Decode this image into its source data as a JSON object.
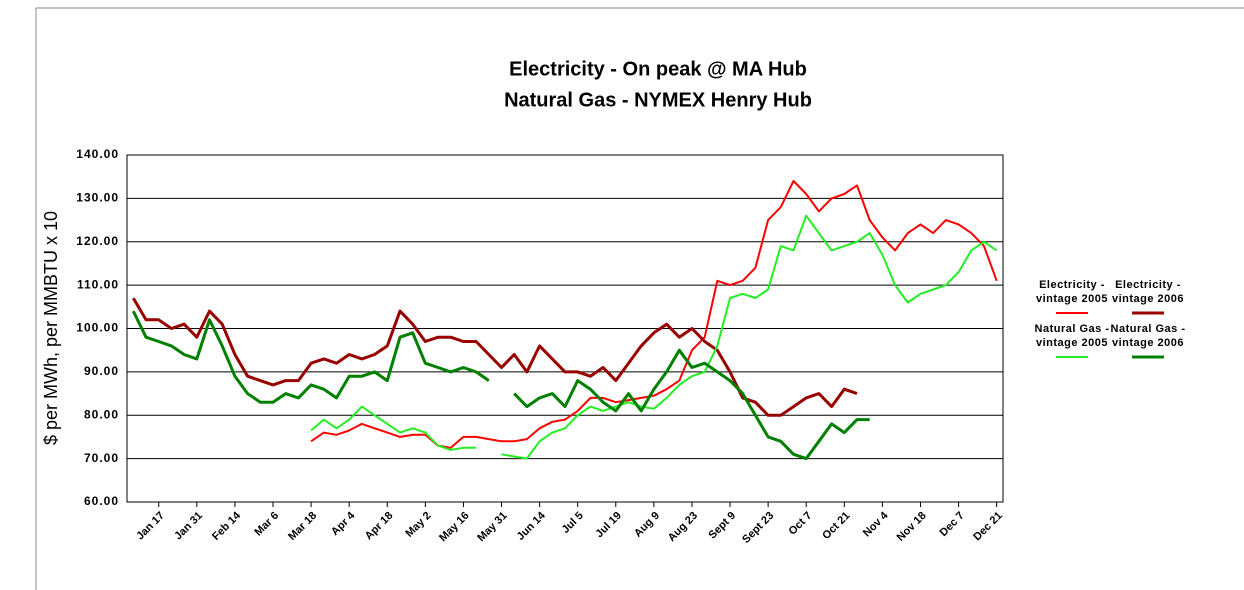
{
  "chart_data": {
    "type": "line",
    "title": "Electricity - On peak @ MA Hub",
    "subtitle": "Natural Gas - NYMEX Henry Hub",
    "y_label": "$ per MWh, per MMBTU x 10",
    "categories": [
      null,
      null,
      "Jan 17",
      null,
      null,
      "Jan 31",
      null,
      null,
      "Feb 14",
      null,
      null,
      "Mar 6",
      null,
      null,
      "Mar 18",
      null,
      null,
      "Apr 4",
      null,
      null,
      "Apr 18",
      null,
      null,
      "May 2",
      null,
      null,
      "May 16",
      null,
      null,
      "May 31",
      null,
      null,
      "Jun 14",
      null,
      null,
      "Jul 5",
      null,
      null,
      "Jul 19",
      null,
      null,
      "Aug 9",
      null,
      null,
      "Aug 23",
      null,
      null,
      "Sept 9",
      null,
      null,
      "Sept 23",
      null,
      null,
      "Oct 7",
      null,
      null,
      "Oct 21",
      null,
      null,
      "Nov 4",
      null,
      null,
      "Nov 18",
      null,
      null,
      "Dec 7",
      null,
      null,
      "Dec 21"
    ],
    "series": [
      {
        "name": "Electricity - vintage 2005",
        "color": "#ff0000",
        "width": 2,
        "values": [
          null,
          null,
          null,
          null,
          null,
          null,
          null,
          null,
          null,
          null,
          null,
          null,
          null,
          null,
          74,
          76,
          75.5,
          76.5,
          78,
          77,
          76,
          75,
          75.5,
          75.5,
          73,
          72.5,
          75,
          75,
          74.5,
          74,
          74,
          74.5,
          77,
          78.5,
          79,
          81,
          84,
          84,
          83,
          83.5,
          84,
          84.5,
          86,
          88,
          95,
          98,
          111,
          110,
          111,
          114,
          125,
          128,
          134,
          131,
          127,
          130,
          131,
          133,
          125,
          121,
          118,
          122,
          124,
          122,
          125,
          124,
          122,
          119,
          111
        ]
      },
      {
        "name": "Electricity - vintage 2006",
        "color": "#990000",
        "width": 3,
        "values": [
          107,
          102,
          102,
          100,
          101,
          98,
          104,
          101,
          94,
          89,
          88,
          87,
          88,
          88,
          92,
          93,
          92,
          94,
          93,
          94,
          96,
          104,
          101,
          97,
          98,
          98,
          97,
          97,
          94,
          91,
          94,
          90,
          96,
          93,
          90,
          90,
          89,
          91,
          88,
          92,
          96,
          99,
          101,
          98,
          100,
          97,
          95,
          90,
          84,
          83,
          80,
          80,
          82,
          84,
          85,
          82,
          86,
          85,
          null,
          null,
          null,
          null,
          null,
          null,
          null,
          null,
          null,
          null,
          null
        ]
      },
      {
        "name": "Natural Gas - vintage 2005",
        "color": "#22ee22",
        "width": 2,
        "values": [
          null,
          null,
          null,
          null,
          null,
          null,
          null,
          null,
          null,
          null,
          null,
          null,
          null,
          null,
          76.5,
          79,
          77,
          79,
          82,
          80,
          78,
          76,
          77,
          76,
          73,
          72,
          72.5,
          72.5,
          null,
          71,
          70.5,
          70,
          74,
          76,
          77,
          80,
          82,
          81,
          82,
          83,
          82,
          81.5,
          84,
          87,
          89,
          90,
          96,
          107,
          108,
          107,
          109,
          119,
          118,
          126,
          122,
          118,
          119,
          120,
          122,
          117,
          110,
          106,
          108,
          109,
          110,
          113,
          118,
          120,
          118
        ]
      },
      {
        "name": "Natural Gas - vintage 2006",
        "color": "#008000",
        "width": 3,
        "values": [
          104,
          98,
          97,
          96,
          94,
          93,
          102,
          96,
          89,
          85,
          83,
          83,
          85,
          84,
          87,
          86,
          84,
          89,
          89,
          90,
          88,
          98,
          99,
          92,
          91,
          90,
          91,
          90,
          88,
          null,
          85,
          82,
          84,
          85,
          82,
          88,
          86,
          83,
          81,
          85,
          81,
          86,
          90,
          95,
          91,
          92,
          90,
          88,
          85,
          80,
          75,
          74,
          71,
          70,
          74,
          78,
          76,
          79,
          79,
          null,
          null,
          null,
          null,
          null,
          null,
          null,
          null,
          null,
          null
        ]
      }
    ],
    "ylim": [
      60,
      140
    ],
    "yticks": [
      {
        "value": 60,
        "label": "60.00"
      },
      {
        "value": 70,
        "label": "70.00"
      },
      {
        "value": 80,
        "label": "80.00"
      },
      {
        "value": 90,
        "label": "90.00"
      },
      {
        "value": 100,
        "label": "100.00"
      },
      {
        "value": 110,
        "label": "110.00"
      },
      {
        "value": 120,
        "label": "120.00"
      },
      {
        "value": 130,
        "label": "130.00"
      },
      {
        "value": 140,
        "label": "140.00"
      }
    ],
    "grid": true,
    "legend": "right"
  }
}
